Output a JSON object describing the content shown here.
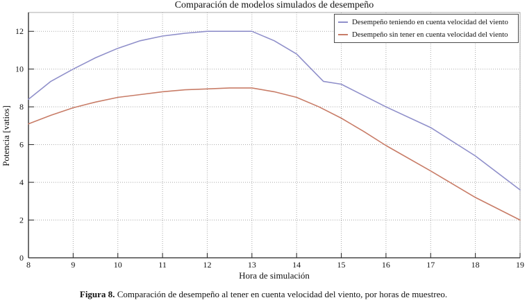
{
  "figure": {
    "caption_label": "Figura 8.",
    "caption_text": " Comparación de desempeño al tener en cuenta velocidad del viento, por horas de muestreo."
  },
  "chart_data": {
    "type": "line",
    "title": "Comparación de modelos simulados de desempeño",
    "xlabel": "Hora de simulación",
    "ylabel": "Potencia [vatios]",
    "xlim": [
      8,
      19
    ],
    "ylim": [
      0,
      13
    ],
    "xticks": [
      8,
      9,
      10,
      11,
      12,
      13,
      14,
      15,
      16,
      17,
      18,
      19
    ],
    "yticks": [
      0,
      2,
      4,
      6,
      8,
      10,
      12
    ],
    "grid": "dotted",
    "legend_position": "top-right-inside",
    "series": [
      {
        "name": "Desempeño teniendo en cuenta velocidad del viento",
        "color": "#8f8fca",
        "points": [
          [
            8,
            8.4
          ],
          [
            8.5,
            9.35
          ],
          [
            9,
            10.0
          ],
          [
            9.5,
            10.6
          ],
          [
            10,
            11.1
          ],
          [
            10.5,
            11.5
          ],
          [
            11,
            11.75
          ],
          [
            11.5,
            11.9
          ],
          [
            12,
            12.0
          ],
          [
            12.5,
            12.0
          ],
          [
            13,
            12.0
          ],
          [
            13.5,
            11.5
          ],
          [
            14,
            10.8
          ],
          [
            14.6,
            9.35
          ],
          [
            15,
            9.2
          ],
          [
            16,
            8.0
          ],
          [
            17,
            6.9
          ],
          [
            18,
            5.4
          ],
          [
            19,
            3.6
          ]
        ]
      },
      {
        "name": "Desempeño sin tener en cuenta velocidad del viento",
        "color": "#c87c67",
        "points": [
          [
            8,
            7.1
          ],
          [
            8.5,
            7.55
          ],
          [
            9,
            7.95
          ],
          [
            9.5,
            8.25
          ],
          [
            10,
            8.5
          ],
          [
            10.5,
            8.65
          ],
          [
            11,
            8.8
          ],
          [
            11.5,
            8.9
          ],
          [
            12,
            8.95
          ],
          [
            12.5,
            9.0
          ],
          [
            13,
            9.0
          ],
          [
            13.5,
            8.8
          ],
          [
            14,
            8.5
          ],
          [
            14.5,
            8.0
          ],
          [
            15,
            7.4
          ],
          [
            15.5,
            6.7
          ],
          [
            16,
            5.95
          ],
          [
            17,
            4.6
          ],
          [
            18,
            3.2
          ],
          [
            19,
            2.0
          ]
        ]
      }
    ],
    "colors": {
      "axis": "#222222",
      "box": "#999999",
      "grid": "#a8a8a8",
      "tick_text": "#111111",
      "background": "#ffffff"
    }
  }
}
